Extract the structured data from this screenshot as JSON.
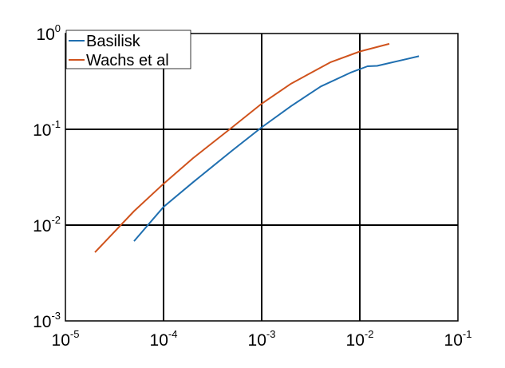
{
  "chart_data": {
    "type": "line",
    "x_scale": "log",
    "y_scale": "log",
    "xlim": [
      1e-05,
      0.1
    ],
    "ylim": [
      0.001,
      1
    ],
    "grid": true,
    "legend_position": "top-left",
    "x_ticks": [
      {
        "value": 1e-05,
        "base": "10",
        "exp": "-5"
      },
      {
        "value": 0.0001,
        "base": "10",
        "exp": "-4"
      },
      {
        "value": 0.001,
        "base": "10",
        "exp": "-3"
      },
      {
        "value": 0.01,
        "base": "10",
        "exp": "-2"
      },
      {
        "value": 0.1,
        "base": "10",
        "exp": "-1"
      }
    ],
    "y_ticks": [
      {
        "value": 0.001,
        "base": "10",
        "exp": "-3"
      },
      {
        "value": 0.01,
        "base": "10",
        "exp": "-2"
      },
      {
        "value": 0.1,
        "base": "10",
        "exp": "-1"
      },
      {
        "value": 1,
        "base": "10",
        "exp": "0"
      }
    ],
    "series": [
      {
        "name": "Basilisk",
        "color": "#1f6fb0",
        "x": [
          5e-05,
          0.0001,
          0.0002,
          0.0005,
          0.001,
          0.002,
          0.004,
          0.008,
          0.012,
          0.015,
          0.04
        ],
        "y": [
          0.0068,
          0.0155,
          0.028,
          0.06,
          0.105,
          0.175,
          0.28,
          0.39,
          0.455,
          0.46,
          0.58
        ]
      },
      {
        "name": "Wachs et al",
        "color": "#d0531d",
        "x": [
          2e-05,
          5e-05,
          0.0001,
          0.0002,
          0.0005,
          0.001,
          0.002,
          0.005,
          0.01,
          0.02
        ],
        "y": [
          0.0052,
          0.014,
          0.027,
          0.05,
          0.105,
          0.185,
          0.3,
          0.5,
          0.65,
          0.78
        ]
      }
    ]
  }
}
